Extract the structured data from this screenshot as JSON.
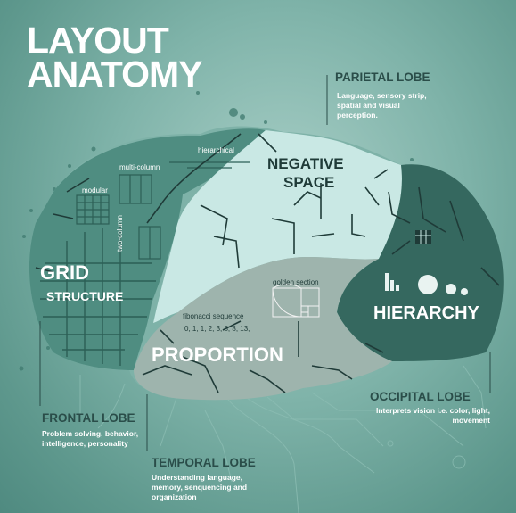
{
  "title": {
    "line1": "LAYOUT",
    "line2": "ANATOMY"
  },
  "lobes": {
    "parietal": {
      "heading": "PARIETAL LOBE",
      "description": "Language, sensory strip, spatial and visual perception."
    },
    "frontal": {
      "heading": "FRONTAL LOBE",
      "description": "Problem solving, behavior, intelligence, personality"
    },
    "temporal": {
      "heading": "TEMPORAL LOBE",
      "description": "Understanding language, memory, senquencing and organization"
    },
    "occipital": {
      "heading": "OCCIPITAL LOBE",
      "description": "Interprets vision i.e. color, light, movement"
    }
  },
  "regions": {
    "grid": "GRID",
    "structure": "STRUCTURE",
    "negative_space_1": "NEGATIVE",
    "negative_space_2": "SPACE",
    "hierarchy": "HIERARCHY",
    "proportion": "PROPORTION"
  },
  "annotations": {
    "hierarchical": "hierarchical",
    "multi_column": "multi-column",
    "modular": "modular",
    "two_column": "two-column",
    "golden_section": "golden section",
    "fibonacci": "fibonacci sequence",
    "fibonacci_numbers": "0, 1, 1, 2, 3, 5, 8, 13,"
  },
  "colors": {
    "background": "#6fa79d",
    "grid_lobe": "#4f8d81",
    "negative_space": "#c9e8e4",
    "hierarchy": "#35685f",
    "proportion": "#9eb4ad",
    "heading_dark": "#2a4d49",
    "text_light": "#ffffff"
  }
}
